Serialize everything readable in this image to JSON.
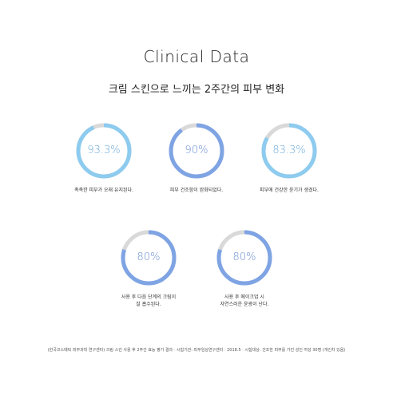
{
  "title": "Clinical Data",
  "subtitle": "크림 스킨으로 느끼는 2주간의 피부 변화",
  "colors": {
    "track": "#d9d9d9",
    "light_blue": "#8dcbef",
    "medium_blue": "#7fa4e4",
    "value_light": "#6aa9d8",
    "value_medium": "#6a8fd3"
  },
  "stats": [
    {
      "value": "93.3%",
      "percent": 93.3,
      "caption": "촉촉한 피부가 오래 유지된다.",
      "color": "#8dcbef",
      "text_color": "#6aa9d8"
    },
    {
      "value": "90%",
      "percent": 90,
      "caption": "피부 건조함이 완화되었다.",
      "color": "#7fa4e4",
      "text_color": "#6a8fd3"
    },
    {
      "value": "83.3%",
      "percent": 83.3,
      "caption": "피부에 건강한 윤기가 생겼다.",
      "color": "#8dcbef",
      "text_color": "#6aa9d8"
    },
    {
      "value": "80%",
      "percent": 80,
      "caption": "사용 후 다음 단계의 크림이\n잘 흡수된다.",
      "color": "#7fa4e4",
      "text_color": "#6a8fd3"
    },
    {
      "value": "80%",
      "percent": 80,
      "caption": "사용 후 메이크업 시\n자연스러운 윤광이 난다.",
      "color": "#7fa4e4",
      "text_color": "#6a8fd3"
    }
  ],
  "footnote": "(한국코스메틱 피부과학 연구센터) 크림 스킨 사용 후 2주간 효능 평가 결과 · 시험기관: 피부임상연구센터 · 2018.5 · 시험대상: 건조한 피부를 가진 성인 여성 30명 (개인차 있음)"
}
